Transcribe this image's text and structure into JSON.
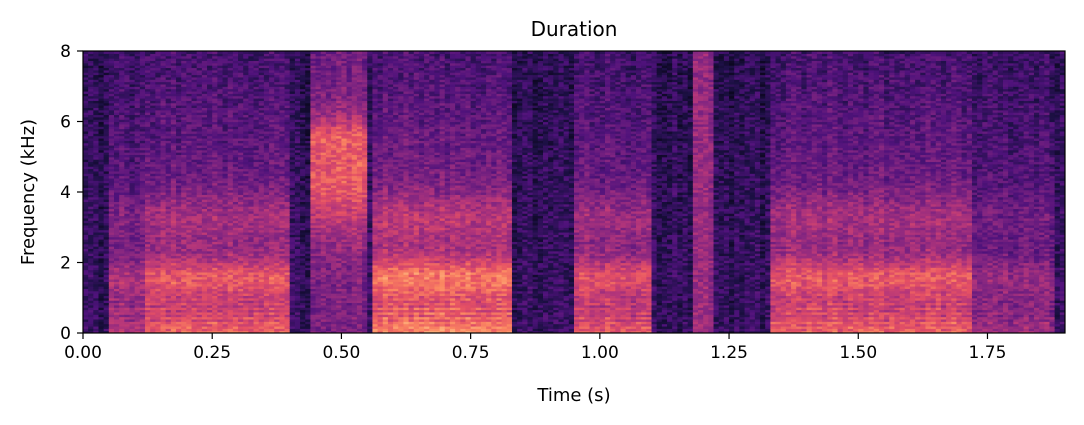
{
  "chart_data": {
    "type": "heatmap",
    "title": "Duration",
    "xlabel": "Time (s)",
    "ylabel": "Frequency (kHz)",
    "xlim": [
      0,
      1.9
    ],
    "ylim": [
      0,
      8
    ],
    "x_ticks": [
      0.0,
      0.25,
      0.5,
      0.75,
      1.0,
      1.25,
      1.5,
      1.75
    ],
    "x_tick_labels": [
      "0.00",
      "0.25",
      "0.50",
      "0.75",
      "1.00",
      "1.25",
      "1.50",
      "1.75"
    ],
    "y_ticks": [
      0,
      2,
      4,
      6,
      8
    ],
    "y_tick_labels": [
      "0",
      "2",
      "4",
      "6",
      "8"
    ],
    "colormap": "magma",
    "grid": false,
    "segments": [
      {
        "t_start": 0.05,
        "t_end": 0.12,
        "kind": "voiced",
        "strength": 0.55
      },
      {
        "t_start": 0.12,
        "t_end": 0.4,
        "kind": "voiced",
        "strength": 0.85
      },
      {
        "t_start": 0.44,
        "t_end": 0.55,
        "kind": "fricative",
        "strength": 0.8
      },
      {
        "t_start": 0.56,
        "t_end": 0.83,
        "kind": "voiced",
        "strength": 1.0
      },
      {
        "t_start": 0.95,
        "t_end": 1.1,
        "kind": "voiced",
        "strength": 0.8
      },
      {
        "t_start": 1.18,
        "t_end": 1.22,
        "kind": "burst",
        "strength": 0.7
      },
      {
        "t_start": 1.33,
        "t_end": 1.72,
        "kind": "voiced",
        "strength": 0.85
      },
      {
        "t_start": 1.72,
        "t_end": 1.88,
        "kind": "voiced",
        "strength": 0.45
      }
    ]
  }
}
